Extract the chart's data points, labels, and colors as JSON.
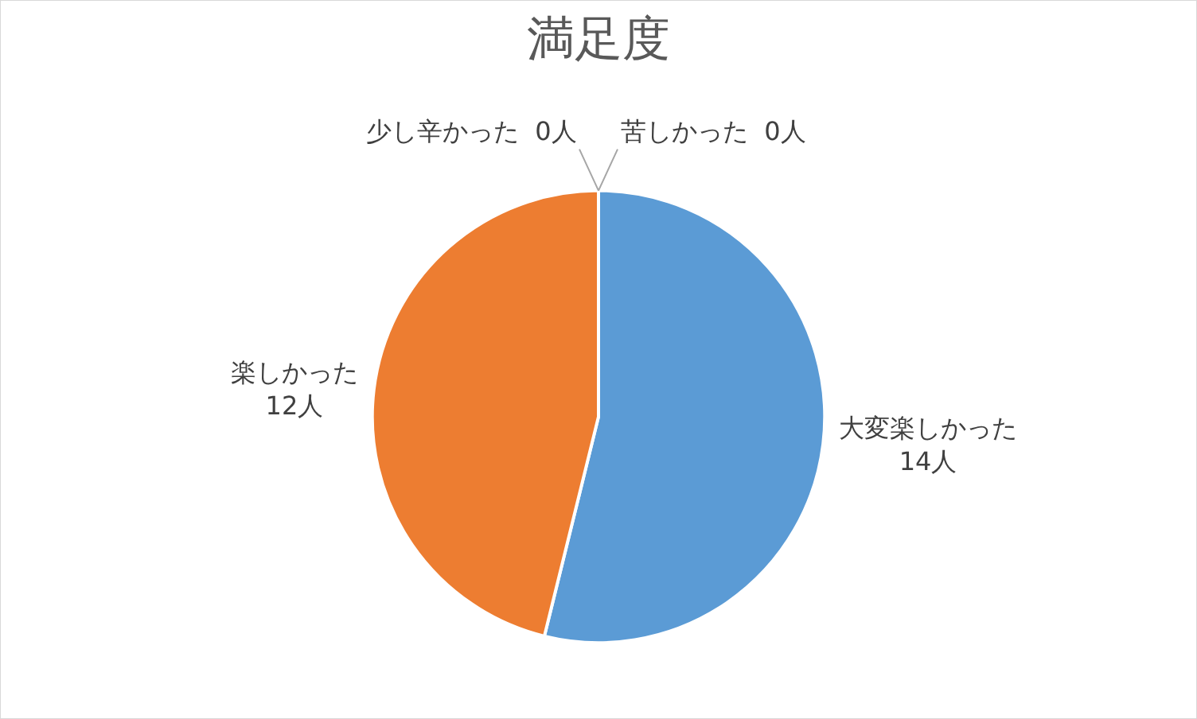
{
  "chart_data": {
    "type": "pie",
    "title": "満足度",
    "categories": [
      "大変楽しかった",
      "楽しかった",
      "少し辛かった",
      "苦しかった"
    ],
    "values": [
      14,
      12,
      0,
      0
    ],
    "value_labels": [
      "14人",
      "12人",
      "0人",
      "0人"
    ],
    "colors": [
      "#5b9bd5",
      "#ed7d31",
      "#a5a5a5",
      "#ffc000"
    ],
    "legend": false
  }
}
